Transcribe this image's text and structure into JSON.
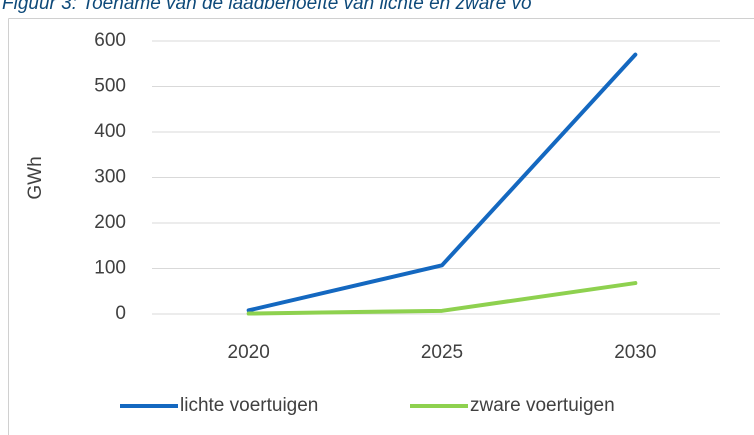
{
  "chart_data": {
    "type": "line",
    "title": "Figuur 3: Toename van de laadbehoefte van lichte en zware vo",
    "y_label": "GWh",
    "categories": [
      "2020",
      "2025",
      "2030"
    ],
    "series": [
      {
        "name": "lichte voertuigen",
        "color": "#1468c0",
        "values": [
          8,
          107,
          570
        ]
      },
      {
        "name": "zware voertuigen",
        "color": "#8ed14f",
        "values": [
          1,
          7,
          68
        ]
      }
    ],
    "ylim": [
      0,
      600
    ],
    "yticks": [
      0,
      100,
      200,
      300,
      400,
      500,
      600
    ],
    "grid": true,
    "legend": "bottom"
  }
}
